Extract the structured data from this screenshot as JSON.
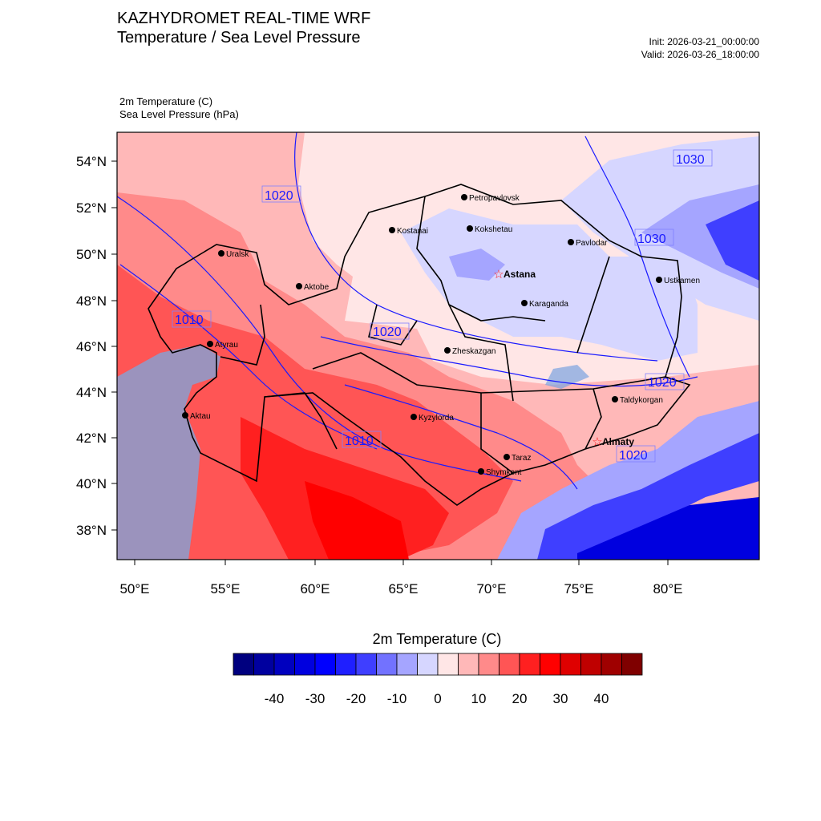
{
  "header": {
    "title": "KAZHYDROMET REAL-TIME WRF",
    "subtitle": "Temperature / Sea Level Pressure",
    "init": "Init: 2026-03-21_00:00:00",
    "valid": "Valid: 2026-03-26_18:00:00"
  },
  "variables": {
    "temp": "2m Temperature   (C)",
    "slp": "Sea Level Pressure   (hPa)"
  },
  "axes": {
    "lat_labels": [
      "54°N",
      "52°N",
      "50°N",
      "48°N",
      "46°N",
      "44°N",
      "42°N",
      "40°N",
      "38°N"
    ],
    "lon_labels": [
      "50°E",
      "55°E",
      "60°E",
      "65°E",
      "70°E",
      "75°E",
      "80°E"
    ]
  },
  "cities": [
    {
      "name": "Petropavlovsk"
    },
    {
      "name": "Kostanai"
    },
    {
      "name": "Kokshetau"
    },
    {
      "name": "Pavlodar"
    },
    {
      "name": "Uralsk"
    },
    {
      "name": "Aktobe"
    },
    {
      "name": "Astana",
      "capital": true
    },
    {
      "name": "Ustkamen"
    },
    {
      "name": "Karaganda"
    },
    {
      "name": "Atyrau"
    },
    {
      "name": "Zheskazgan"
    },
    {
      "name": "Taldykorgan"
    },
    {
      "name": "Aktau"
    },
    {
      "name": "Kyzylorda"
    },
    {
      "name": "Almaty",
      "capital": true
    },
    {
      "name": "Taraz"
    },
    {
      "name": "Shymkent"
    }
  ],
  "isobar_labels": [
    "1030",
    "1020",
    "1030",
    "1010",
    "1020",
    "1020",
    "1010",
    "1020"
  ],
  "colorbar": {
    "title": "2m Temperature  (C)",
    "tick_labels": [
      "-40",
      "-30",
      "-20",
      "-10",
      "0",
      "10",
      "20",
      "30",
      "40"
    ],
    "colors": [
      "#00007f",
      "#00009f",
      "#0000bf",
      "#0000df",
      "#0000ff",
      "#1f1fff",
      "#3f3fff",
      "#7272ff",
      "#a5a5ff",
      "#d6d6ff",
      "#ffe6e6",
      "#ffb8b8",
      "#ff8a8a",
      "#ff5555",
      "#ff2020",
      "#ff0000",
      "#df0000",
      "#bf0000",
      "#9f0000",
      "#7f0000"
    ]
  }
}
